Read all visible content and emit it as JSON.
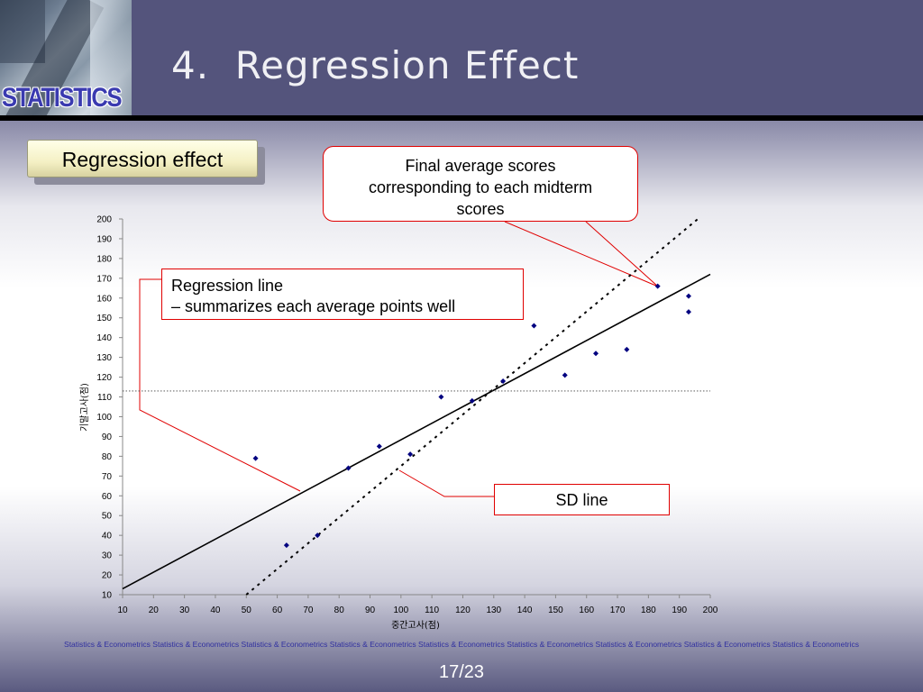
{
  "header": {
    "logo_text": "STATISTICS",
    "title": "4.  Regression Effect"
  },
  "section_label": "Regression effect",
  "callouts": {
    "final_avg": "Final average scores corresponding to each midterm scores",
    "regression_line_title": "Regression line",
    "regression_line_desc": "– summarizes each average points well",
    "sd_line": "SD line"
  },
  "chart_data": {
    "type": "scatter",
    "xlabel": "중간고사(점)",
    "ylabel": "기말고사(점)",
    "xlim": [
      10,
      200
    ],
    "ylim": [
      10,
      200
    ],
    "x_ticks": [
      10,
      20,
      30,
      40,
      50,
      60,
      70,
      80,
      90,
      100,
      110,
      120,
      130,
      140,
      150,
      160,
      170,
      180,
      190,
      200
    ],
    "y_ticks": [
      10,
      20,
      30,
      40,
      50,
      60,
      70,
      80,
      90,
      100,
      110,
      120,
      130,
      140,
      150,
      160,
      170,
      180,
      190,
      200
    ],
    "grid": false,
    "points": [
      {
        "x": 53,
        "y": 79
      },
      {
        "x": 63,
        "y": 35
      },
      {
        "x": 73,
        "y": 40
      },
      {
        "x": 83,
        "y": 74
      },
      {
        "x": 93,
        "y": 85
      },
      {
        "x": 103,
        "y": 81
      },
      {
        "x": 113,
        "y": 110
      },
      {
        "x": 123,
        "y": 108
      },
      {
        "x": 133,
        "y": 118
      },
      {
        "x": 143,
        "y": 146
      },
      {
        "x": 153,
        "y": 121
      },
      {
        "x": 163,
        "y": 132
      },
      {
        "x": 173,
        "y": 134
      },
      {
        "x": 183,
        "y": 166
      },
      {
        "x": 193,
        "y": 161
      },
      {
        "x": 193,
        "y": 153
      }
    ],
    "lines": [
      {
        "name": "Regression line",
        "style": "solid",
        "points": [
          [
            10,
            13
          ],
          [
            200,
            172
          ]
        ]
      },
      {
        "name": "SD line",
        "style": "dotted",
        "points": [
          [
            50,
            10
          ],
          [
            196,
            200
          ]
        ]
      },
      {
        "name": "mean",
        "style": "fine-dotted",
        "points": [
          [
            10,
            113
          ],
          [
            200,
            113
          ]
        ]
      }
    ],
    "colors": {
      "points": "#000080",
      "lines": "#000000",
      "callout_border": "#e00000"
    }
  },
  "footer": {
    "text": "Statistics & Econometrics Statistics & Econometrics Statistics & Econometrics Statistics & Econometrics Statistics & Econometrics Statistics & Econometrics Statistics & Econometrics Statistics & Econometrics Statistics & Econometrics",
    "page": "17/23"
  }
}
